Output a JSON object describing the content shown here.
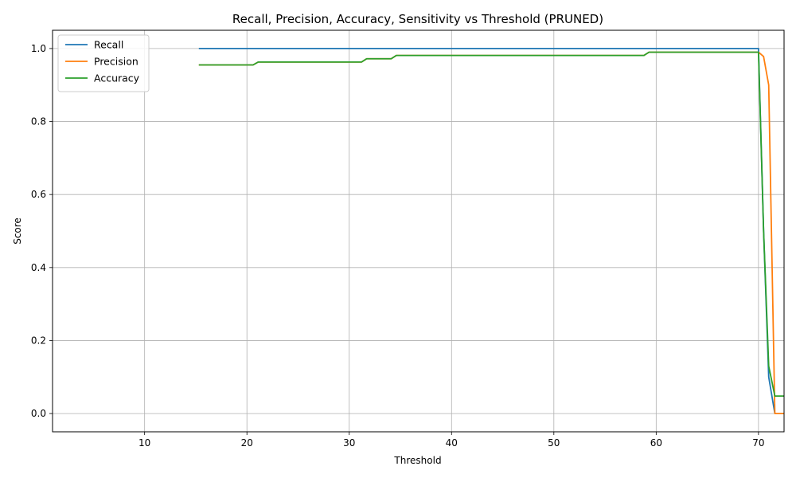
{
  "chart_data": {
    "type": "line",
    "title": "Recall, Precision, Accuracy, Sensitivity vs Threshold (PRUNED)",
    "xlabel": "Threshold",
    "ylabel": "Score",
    "xlim": [
      1,
      72.5
    ],
    "ylim": [
      -0.05,
      1.05
    ],
    "xticks": [
      10,
      20,
      30,
      40,
      50,
      60,
      70
    ],
    "yticks": [
      0.0,
      0.2,
      0.4,
      0.6,
      0.8,
      1.0
    ],
    "ytick_labels": [
      "0.0",
      "0.2",
      "0.4",
      "0.6",
      "0.8",
      "1.0"
    ],
    "grid": true,
    "legend_position": "top-left",
    "series": [
      {
        "name": "Recall",
        "color": "#1f77b4",
        "points": [
          [
            15.3,
            1.0
          ],
          [
            70.0,
            1.0
          ],
          [
            70.5,
            0.5
          ],
          [
            71.0,
            0.1
          ],
          [
            71.6,
            0.0
          ]
        ]
      },
      {
        "name": "Precision",
        "color": "#ff7f0e",
        "points": [
          [
            15.3,
            0.955
          ],
          [
            20.6,
            0.955
          ],
          [
            21.1,
            0.963
          ],
          [
            31.2,
            0.963
          ],
          [
            31.7,
            0.972
          ],
          [
            34.1,
            0.972
          ],
          [
            34.6,
            0.981
          ],
          [
            58.8,
            0.981
          ],
          [
            59.3,
            0.99
          ],
          [
            70.0,
            0.99
          ],
          [
            70.5,
            0.978
          ],
          [
            71.0,
            0.9
          ],
          [
            71.6,
            0.0
          ],
          [
            72.5,
            0.0
          ]
        ]
      },
      {
        "name": "Accuracy",
        "color": "#2ca02c",
        "points": [
          [
            15.3,
            0.955
          ],
          [
            20.6,
            0.955
          ],
          [
            21.1,
            0.963
          ],
          [
            31.2,
            0.963
          ],
          [
            31.7,
            0.972
          ],
          [
            34.1,
            0.972
          ],
          [
            34.6,
            0.981
          ],
          [
            58.8,
            0.981
          ],
          [
            59.3,
            0.99
          ],
          [
            70.0,
            0.99
          ],
          [
            70.5,
            0.5
          ],
          [
            71.0,
            0.13
          ],
          [
            71.6,
            0.048
          ],
          [
            72.5,
            0.048
          ]
        ]
      }
    ]
  }
}
